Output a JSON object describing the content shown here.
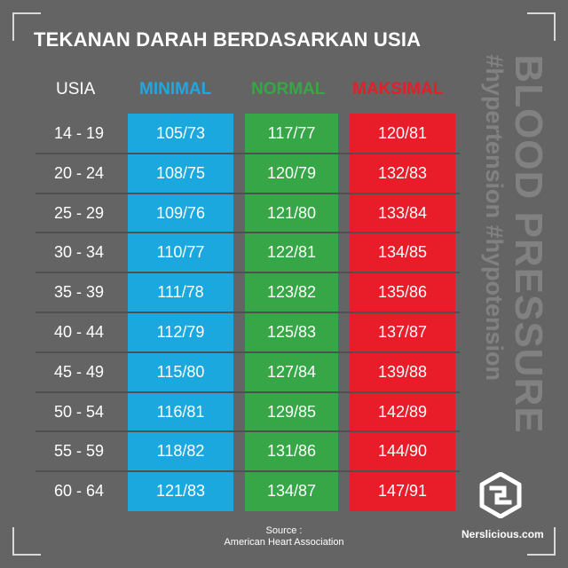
{
  "title": "TEKANAN DARAH BERDASARKAN USIA",
  "headers": {
    "age": "USIA",
    "min": "MINIMAL",
    "normal": "NORMAL",
    "max": "MAKSIMAL"
  },
  "rows": [
    {
      "age": "14 - 19",
      "min": "105/73",
      "normal": "117/77",
      "max": "120/81"
    },
    {
      "age": "20 - 24",
      "min": "108/75",
      "normal": "120/79",
      "max": "132/83"
    },
    {
      "age": "25 - 29",
      "min": "109/76",
      "normal": "121/80",
      "max": "133/84"
    },
    {
      "age": "30 - 34",
      "min": "110/77",
      "normal": "122/81",
      "max": "134/85"
    },
    {
      "age": "35 - 39",
      "min": "111/78",
      "normal": "123/82",
      "max": "135/86"
    },
    {
      "age": "40 - 44",
      "min": "112/79",
      "normal": "125/83",
      "max": "137/87"
    },
    {
      "age": "45 - 49",
      "min": "115/80",
      "normal": "127/84",
      "max": "139/88"
    },
    {
      "age": "50 - 54",
      "min": "116/81",
      "normal": "129/85",
      "max": "142/89"
    },
    {
      "age": "55 - 59",
      "min": "118/82",
      "normal": "131/86",
      "max": "144/90"
    },
    {
      "age": "60 - 64",
      "min": "121/83",
      "normal": "134/87",
      "max": "147/91"
    }
  ],
  "side_text": {
    "main": "BLOOD PRESSURE",
    "tags": "#hypertension #hypotension"
  },
  "source": {
    "label": "Source :",
    "value": "American Heart Association"
  },
  "brand": "Nerslicious.com",
  "colors": {
    "background": "#646464",
    "minimal": "#1aa8df",
    "normal": "#37a646",
    "maksimal": "#e91c2a",
    "side_text": "#818181"
  }
}
